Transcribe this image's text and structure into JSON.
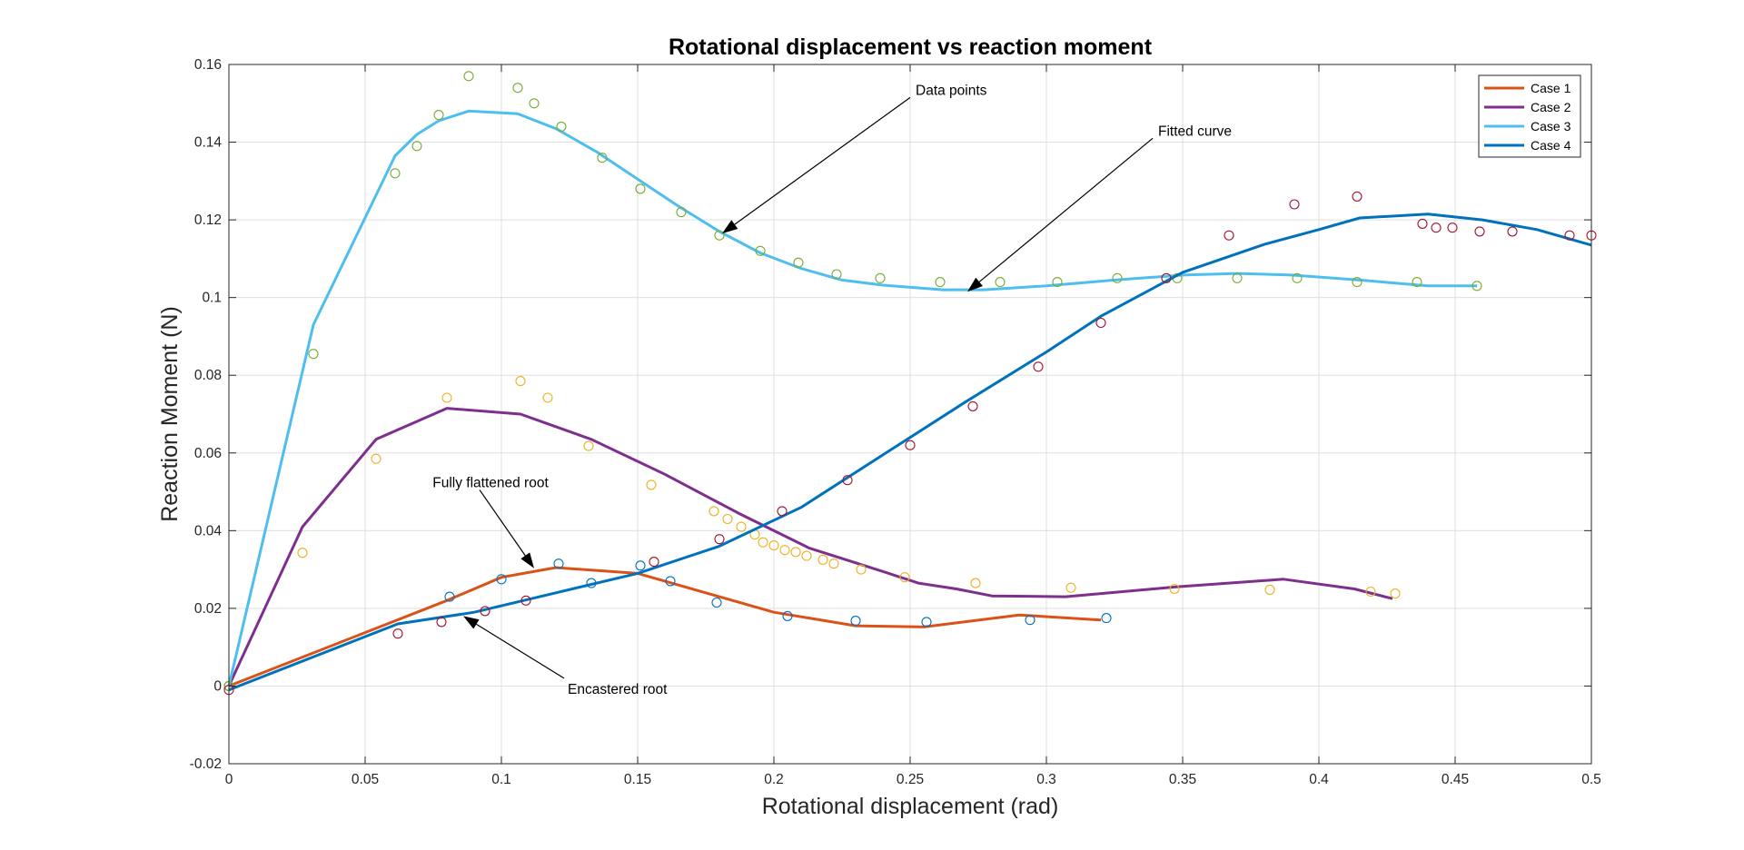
{
  "chart_data": {
    "type": "line",
    "title": "Rotational displacement vs reaction moment",
    "xlabel": "Rotational displacement (rad)",
    "ylabel": "Reaction Moment (N)",
    "xlim": [
      0,
      0.5
    ],
    "ylim": [
      -0.02,
      0.16
    ],
    "xticks": [
      0,
      0.05,
      0.1,
      0.15,
      0.2,
      0.25,
      0.3,
      0.35,
      0.4,
      0.45,
      0.5
    ],
    "xtick_labels": [
      "0",
      "0.05",
      "0.1",
      "0.15",
      "0.2",
      "0.25",
      "0.3",
      "0.35",
      "0.4",
      "0.45",
      "0.5"
    ],
    "yticks": [
      -0.02,
      0,
      0.02,
      0.04,
      0.06,
      0.08,
      0.1,
      0.12,
      0.14,
      0.16
    ],
    "ytick_labels": [
      "-0.02",
      "0",
      "0.02",
      "0.04",
      "0.06",
      "0.08",
      "0.1",
      "0.12",
      "0.14",
      "0.16"
    ],
    "grid": true,
    "legend_position": "top-right",
    "series": [
      {
        "name": "Case 1",
        "color": "#D95319",
        "line": [
          [
            0,
            0
          ],
          [
            0.08,
            0.022
          ],
          [
            0.1,
            0.028
          ],
          [
            0.12,
            0.0305
          ],
          [
            0.15,
            0.029
          ],
          [
            0.175,
            0.024
          ],
          [
            0.2,
            0.019
          ],
          [
            0.23,
            0.0155
          ],
          [
            0.255,
            0.0152
          ],
          [
            0.29,
            0.0183
          ],
          [
            0.32,
            0.017
          ]
        ],
        "points": [
          [
            0,
            0
          ],
          [
            0.081,
            0.023
          ],
          [
            0.1,
            0.0275
          ],
          [
            0.121,
            0.0315
          ],
          [
            0.133,
            0.0265
          ],
          [
            0.151,
            0.031
          ],
          [
            0.162,
            0.027
          ],
          [
            0.179,
            0.0215
          ],
          [
            0.205,
            0.018
          ],
          [
            0.23,
            0.0168
          ],
          [
            0.256,
            0.0165
          ],
          [
            0.294,
            0.017
          ],
          [
            0.322,
            0.0175
          ]
        ],
        "point_color": "#0072BD"
      },
      {
        "name": "Case 2",
        "color": "#7E2F8E",
        "line": [
          [
            0,
            0
          ],
          [
            0.027,
            0.041
          ],
          [
            0.054,
            0.0635
          ],
          [
            0.08,
            0.0715
          ],
          [
            0.107,
            0.07
          ],
          [
            0.117,
            0.0675
          ],
          [
            0.133,
            0.0635
          ],
          [
            0.16,
            0.0545
          ],
          [
            0.187,
            0.0445
          ],
          [
            0.213,
            0.0355
          ],
          [
            0.24,
            0.0295
          ],
          [
            0.253,
            0.0265
          ],
          [
            0.267,
            0.025
          ],
          [
            0.28,
            0.0232
          ],
          [
            0.307,
            0.023
          ],
          [
            0.347,
            0.0255
          ],
          [
            0.387,
            0.0275
          ],
          [
            0.413,
            0.025
          ],
          [
            0.427,
            0.0225
          ]
        ],
        "points": [
          [
            0,
            0
          ],
          [
            0.027,
            0.0343
          ],
          [
            0.054,
            0.0585
          ],
          [
            0.08,
            0.0742
          ],
          [
            0.107,
            0.0785
          ],
          [
            0.117,
            0.0742
          ],
          [
            0.132,
            0.0618
          ],
          [
            0.155,
            0.0518
          ],
          [
            0.178,
            0.045
          ],
          [
            0.183,
            0.043
          ],
          [
            0.188,
            0.041
          ],
          [
            0.193,
            0.039
          ],
          [
            0.196,
            0.037
          ],
          [
            0.2,
            0.0362
          ],
          [
            0.204,
            0.035
          ],
          [
            0.208,
            0.0345
          ],
          [
            0.212,
            0.0335
          ],
          [
            0.218,
            0.0325
          ],
          [
            0.222,
            0.0315
          ],
          [
            0.232,
            0.03
          ],
          [
            0.248,
            0.028
          ],
          [
            0.274,
            0.0265
          ],
          [
            0.309,
            0.0253
          ],
          [
            0.347,
            0.025
          ],
          [
            0.382,
            0.0248
          ],
          [
            0.419,
            0.0243
          ],
          [
            0.428,
            0.0238
          ]
        ],
        "point_color": "#EDB120"
      },
      {
        "name": "Case 3",
        "color": "#4DBEEE",
        "line": [
          [
            0,
            0
          ],
          [
            0.031,
            0.093
          ],
          [
            0.061,
            0.1365
          ],
          [
            0.069,
            0.142
          ],
          [
            0.077,
            0.1455
          ],
          [
            0.088,
            0.148
          ],
          [
            0.106,
            0.1473
          ],
          [
            0.12,
            0.1435
          ],
          [
            0.135,
            0.1375
          ],
          [
            0.15,
            0.1305
          ],
          [
            0.165,
            0.1235
          ],
          [
            0.18,
            0.117
          ],
          [
            0.195,
            0.1115
          ],
          [
            0.21,
            0.1075
          ],
          [
            0.225,
            0.1045
          ],
          [
            0.24,
            0.1032
          ],
          [
            0.262,
            0.102
          ],
          [
            0.277,
            0.102
          ],
          [
            0.3,
            0.103
          ],
          [
            0.325,
            0.1045
          ],
          [
            0.35,
            0.1058
          ],
          [
            0.37,
            0.1062
          ],
          [
            0.39,
            0.1058
          ],
          [
            0.415,
            0.1045
          ],
          [
            0.44,
            0.103
          ],
          [
            0.458,
            0.103
          ]
        ],
        "points": [
          [
            0,
            0
          ],
          [
            0.031,
            0.0855
          ],
          [
            0.061,
            0.132
          ],
          [
            0.069,
            0.139
          ],
          [
            0.077,
            0.147
          ],
          [
            0.088,
            0.157
          ],
          [
            0.106,
            0.154
          ],
          [
            0.112,
            0.15
          ],
          [
            0.122,
            0.144
          ],
          [
            0.137,
            0.136
          ],
          [
            0.151,
            0.128
          ],
          [
            0.166,
            0.122
          ],
          [
            0.18,
            0.116
          ],
          [
            0.195,
            0.112
          ],
          [
            0.209,
            0.109
          ],
          [
            0.223,
            0.106
          ],
          [
            0.239,
            0.105
          ],
          [
            0.261,
            0.104
          ],
          [
            0.283,
            0.104
          ],
          [
            0.304,
            0.104
          ],
          [
            0.326,
            0.105
          ],
          [
            0.348,
            0.105
          ],
          [
            0.37,
            0.105
          ],
          [
            0.392,
            0.105
          ],
          [
            0.414,
            0.104
          ],
          [
            0.436,
            0.104
          ],
          [
            0.458,
            0.103
          ]
        ],
        "point_color": "#77AC30"
      },
      {
        "name": "Case 4",
        "color": "#0072BD",
        "line": [
          [
            0,
            -0.001
          ],
          [
            0.062,
            0.016
          ],
          [
            0.09,
            0.019
          ],
          [
            0.12,
            0.024
          ],
          [
            0.15,
            0.029
          ],
          [
            0.18,
            0.036
          ],
          [
            0.21,
            0.046
          ],
          [
            0.24,
            0.0595
          ],
          [
            0.27,
            0.073
          ],
          [
            0.3,
            0.086
          ],
          [
            0.32,
            0.0952
          ],
          [
            0.35,
            0.1065
          ],
          [
            0.38,
            0.1137
          ],
          [
            0.4,
            0.1175
          ],
          [
            0.415,
            0.1205
          ],
          [
            0.44,
            0.1215
          ],
          [
            0.46,
            0.12
          ],
          [
            0.48,
            0.1175
          ],
          [
            0.5,
            0.1135
          ]
        ],
        "points": [
          [
            0,
            -0.001
          ],
          [
            0.062,
            0.0135
          ],
          [
            0.078,
            0.0165
          ],
          [
            0.094,
            0.0193
          ],
          [
            0.109,
            0.022
          ],
          [
            0.156,
            0.032
          ],
          [
            0.18,
            0.0378
          ],
          [
            0.203,
            0.045
          ],
          [
            0.227,
            0.053
          ],
          [
            0.25,
            0.062
          ],
          [
            0.273,
            0.072
          ],
          [
            0.297,
            0.0822
          ],
          [
            0.32,
            0.0935
          ],
          [
            0.344,
            0.105
          ],
          [
            0.367,
            0.116
          ],
          [
            0.391,
            0.124
          ],
          [
            0.414,
            0.126
          ],
          [
            0.438,
            0.119
          ],
          [
            0.443,
            0.118
          ],
          [
            0.449,
            0.118
          ],
          [
            0.459,
            0.117
          ],
          [
            0.471,
            0.117
          ],
          [
            0.492,
            0.116
          ],
          [
            0.5,
            0.116
          ]
        ],
        "point_color": "#A2142F"
      }
    ],
    "annotations": [
      {
        "text": "Data points",
        "from": [
          0.25,
          0.1515
        ],
        "to": [
          0.181,
          0.1165
        ]
      },
      {
        "text": "Fitted curve",
        "from": [
          0.339,
          0.141
        ],
        "to": [
          0.271,
          0.1015
        ]
      },
      {
        "text": "Fully flattened root",
        "from": [
          0.092,
          0.0505
        ],
        "to": [
          0.112,
          0.0303
        ]
      },
      {
        "text": "Encastered root",
        "from": [
          0.123,
          0.002
        ],
        "to": [
          0.086,
          0.018
        ]
      }
    ]
  }
}
